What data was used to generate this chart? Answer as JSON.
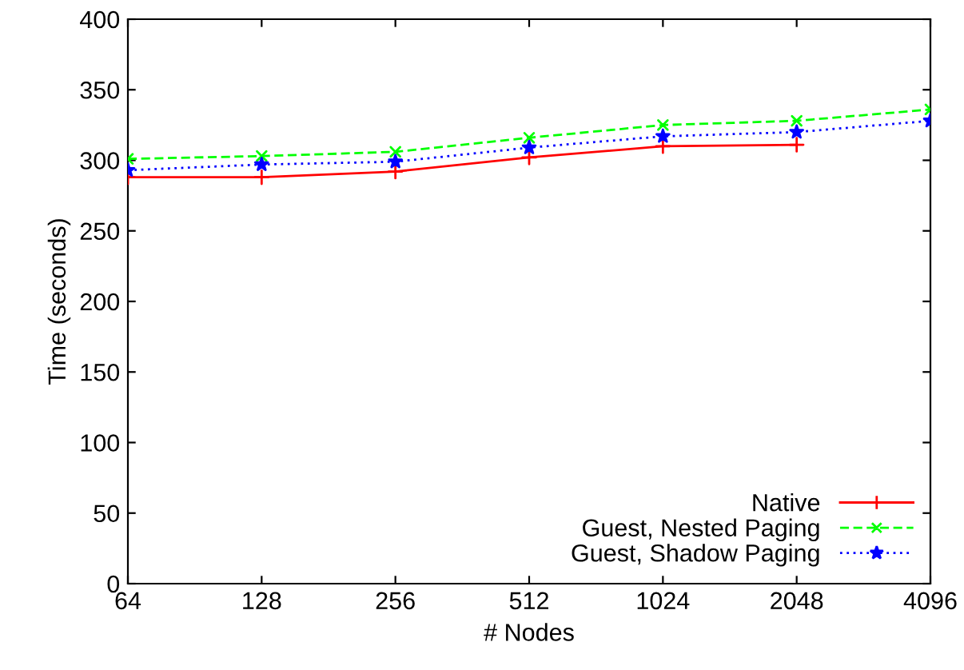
{
  "chart_data": {
    "type": "line",
    "xlabel": "# Nodes",
    "ylabel": "Time (seconds)",
    "categories": [
      "64",
      "128",
      "256",
      "512",
      "1024",
      "2048",
      "4096"
    ],
    "series": [
      {
        "name": "Native",
        "color": "#ff0000",
        "values": [
          288,
          288,
          292,
          302,
          310,
          311,
          null
        ],
        "marker": "cross",
        "line_style": "solid"
      },
      {
        "name": "Guest, Nested Paging",
        "color": "#00ff00",
        "values": [
          301,
          303,
          306,
          316,
          325,
          328,
          336
        ],
        "marker": "cross",
        "line_style": "dashed"
      },
      {
        "name": "Guest, Shadow Paging",
        "color": "#0000ff",
        "values": [
          293,
          297,
          299,
          309,
          317,
          320,
          328
        ],
        "marker": "star",
        "line_style": "dotted"
      }
    ],
    "ylim": [
      0,
      400
    ],
    "yticks": [
      0,
      50,
      100,
      150,
      200,
      250,
      300,
      350,
      400
    ],
    "grid": false,
    "legend": "bottom right"
  }
}
